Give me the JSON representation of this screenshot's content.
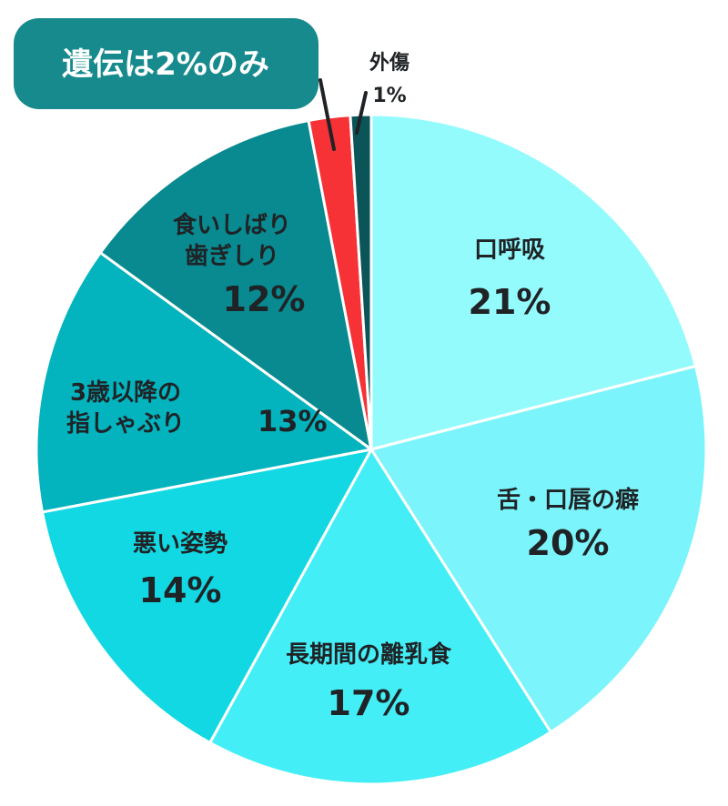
{
  "chart_data": {
    "type": "pie",
    "start_angle_deg": 0,
    "direction": "clockwise",
    "slices": [
      {
        "label_lines": [
          "口呼吸"
        ],
        "pct_text": "21%",
        "value": 21,
        "color": "#94fbfd",
        "light_text": false
      },
      {
        "label_lines": [
          "舌・口唇の癖"
        ],
        "pct_text": "20%",
        "value": 20,
        "color": "#7cf4fb",
        "light_text": false
      },
      {
        "label_lines": [
          "長期間の離乳食"
        ],
        "pct_text": "17%",
        "value": 17,
        "color": "#44eef6",
        "light_text": false
      },
      {
        "label_lines": [
          "悪い姿勢"
        ],
        "pct_text": "14%",
        "value": 14,
        "color": "#12d8e3",
        "light_text": false
      },
      {
        "label_lines": [
          "3歳以降の",
          "指しゃぶり"
        ],
        "pct_text": "13%",
        "value": 13,
        "color": "#03b3bd",
        "light_text": true
      },
      {
        "label_lines": [
          "食いしばり",
          "歯ぎしり"
        ],
        "pct_text": "12%",
        "value": 12,
        "color": "#088a90",
        "light_text": true
      },
      {
        "label_lines": [],
        "pct_text": "",
        "value": 2,
        "color": "#f63236",
        "light_text": false
      },
      {
        "label_lines": [
          "外傷"
        ],
        "pct_text": "1%",
        "value": 1,
        "color": "#0b5559",
        "light_text": false
      }
    ]
  },
  "callout": {
    "text": "遺伝は2%のみ",
    "bg_color": "#178a8e"
  }
}
